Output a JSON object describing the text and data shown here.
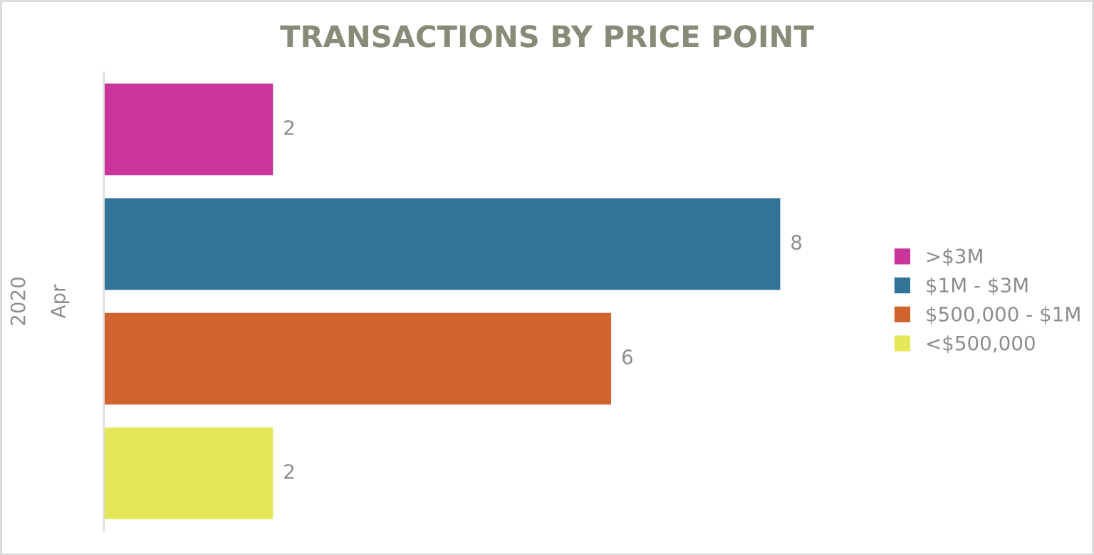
{
  "chart_data": {
    "type": "bar",
    "orientation": "horizontal",
    "stacked": true,
    "title": "TRANSACTIONS BY PRICE POINT",
    "ylabel": "Apr",
    "annotations": [
      "2020"
    ],
    "categories": [
      null,
      null,
      null,
      null
    ],
    "series": [
      {
        "name": ">$3M",
        "color": "#c9359a",
        "values": [
          2,
          null,
          null,
          null
        ]
      },
      {
        "name": "$1M - $3M",
        "color": "#327498",
        "values": [
          null,
          8,
          null,
          null
        ]
      },
      {
        "name": "$500,000 - $1M",
        "color": "#d2632f",
        "values": [
          null,
          null,
          6,
          null
        ]
      },
      {
        "name": "<$500,000",
        "color": "#e4e858",
        "values": [
          null,
          null,
          null,
          2
        ]
      }
    ],
    "data_labels": true,
    "legend": "right",
    "grid": false
  }
}
